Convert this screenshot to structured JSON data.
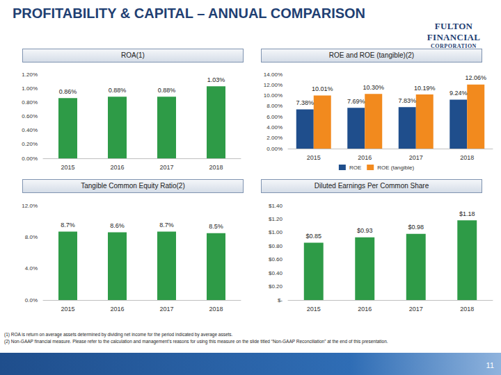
{
  "title": "PROFITABILITY & CAPITAL – ANNUAL COMPARISON",
  "logo": [
    "FULTON FINANCIAL",
    "CORPORATION"
  ],
  "footnotes": [
    "(1)   ROA is return on average assets determined by dividing net income for the period indicated by average assets.",
    "(2)   Non-GAAP financial measure. Please refer to the calculation and management's reasons for using this measure on the slide titled “Non-GAAP Reconciliation” at the end of this presentation."
  ],
  "page": "11",
  "chart_data": [
    {
      "type": "bar",
      "title": "ROA(1)",
      "categories": [
        "2015",
        "2016",
        "2017",
        "2018"
      ],
      "values": [
        0.86,
        0.88,
        0.88,
        1.03
      ],
      "value_labels": [
        "0.86%",
        "0.88%",
        "0.88%",
        "1.03%"
      ],
      "color": "#2e9b47",
      "ylim": [
        0,
        1.2
      ],
      "yticks": [
        {
          "value": 0,
          "label": "0.00%"
        },
        {
          "value": 0.2,
          "label": "0.20%"
        },
        {
          "value": 0.4,
          "label": "0.40%"
        },
        {
          "value": 0.6,
          "label": "0.60%"
        },
        {
          "value": 0.8,
          "label": "0.80%"
        },
        {
          "value": 1.0,
          "label": "1.00%"
        },
        {
          "value": 1.2,
          "label": "1.20%"
        }
      ],
      "grid": false,
      "data_labels": true
    },
    {
      "type": "bar",
      "title": "ROE  and ROE (tangible)(2)",
      "categories": [
        "2015",
        "2016",
        "2017",
        "2018"
      ],
      "series": [
        {
          "name": "ROE",
          "color": "#1f4e8c",
          "values": [
            7.38,
            7.69,
            7.83,
            9.24
          ],
          "value_labels": [
            "7.38%",
            "7.69%",
            "7.83%",
            "9.24%"
          ]
        },
        {
          "name": "ROE (tangible)",
          "color": "#f28a1e",
          "values": [
            10.01,
            10.3,
            10.19,
            12.06
          ],
          "value_labels": [
            "10.01%",
            "10.30%",
            "10.19%",
            "12.06%"
          ]
        }
      ],
      "ylim": [
        0,
        14
      ],
      "yticks": [
        {
          "value": 0,
          "label": "0.00%"
        },
        {
          "value": 2,
          "label": "2.00%"
        },
        {
          "value": 4,
          "label": "4.00%"
        },
        {
          "value": 6,
          "label": "6.00%"
        },
        {
          "value": 8,
          "label": "8.00%"
        },
        {
          "value": 10,
          "label": "10.00%"
        },
        {
          "value": 12,
          "label": "12.00%"
        },
        {
          "value": 14,
          "label": "14.00%"
        }
      ],
      "grid": false,
      "data_labels": true,
      "legend": "bottom"
    },
    {
      "type": "bar",
      "title": "Tangible Common Equity Ratio(2)",
      "categories": [
        "2015",
        "2016",
        "2017",
        "2018"
      ],
      "values": [
        8.7,
        8.6,
        8.7,
        8.5
      ],
      "value_labels": [
        "8.7%",
        "8.6%",
        "8.7%",
        "8.5%"
      ],
      "color": "#2e9b47",
      "ylim": [
        0,
        12
      ],
      "yticks": [
        {
          "value": 0,
          "label": "0.0%"
        },
        {
          "value": 4,
          "label": "4.0%"
        },
        {
          "value": 8,
          "label": "8.0%"
        },
        {
          "value": 12,
          "label": "12.0%"
        }
      ],
      "grid": false,
      "data_labels": true
    },
    {
      "type": "bar",
      "title": "Diluted Earnings Per Common Share",
      "categories": [
        "2015",
        "2016",
        "2017",
        "2018"
      ],
      "values": [
        0.85,
        0.93,
        0.98,
        1.18
      ],
      "value_labels": [
        "$0.85",
        "$0.93",
        "$0.98",
        "$1.18"
      ],
      "color": "#2e9b47",
      "ylim": [
        0,
        1.4
      ],
      "yticks": [
        {
          "value": 0,
          "label": "$-"
        },
        {
          "value": 0.2,
          "label": "$0.20"
        },
        {
          "value": 0.4,
          "label": "$0.40"
        },
        {
          "value": 0.6,
          "label": "$0.60"
        },
        {
          "value": 0.8,
          "label": "$0.80"
        },
        {
          "value": 1.0,
          "label": "$1.00"
        },
        {
          "value": 1.2,
          "label": "$1.20"
        },
        {
          "value": 1.4,
          "label": "$1.40"
        }
      ],
      "grid": false,
      "data_labels": true
    }
  ]
}
